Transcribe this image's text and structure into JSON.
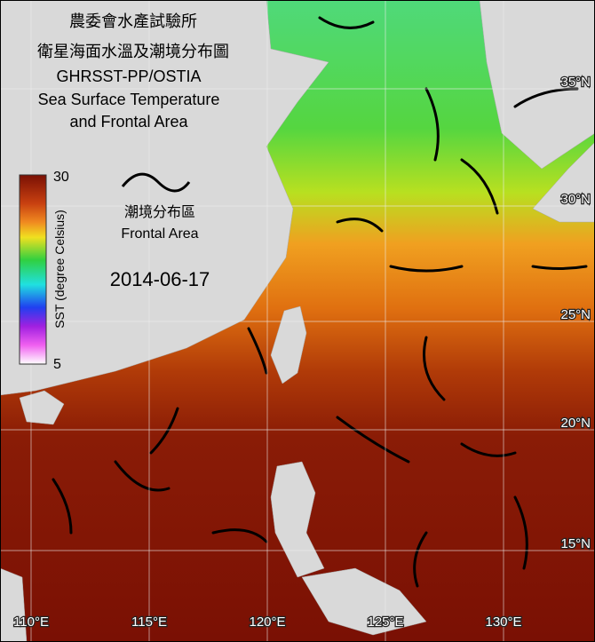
{
  "header": {
    "title_lines": [
      "農委會水產試驗所",
      "衛星海面水溫及潮境分布圖",
      "GHRSST-PP/OSTIA",
      "Sea Surface Temperature",
      "and Frontal Area"
    ]
  },
  "colorbar": {
    "max": 30,
    "min": 5,
    "label": "SST (degree Celsius)"
  },
  "frontal_legend": {
    "label_zh": "潮境分布區",
    "label_en": "Frontal Area"
  },
  "date": "2014-06-17",
  "grid": {
    "lat_labels": [
      "35°N",
      "30°N",
      "25°N",
      "20°N",
      "15°N"
    ],
    "lon_labels": [
      "110°E",
      "115°E",
      "120°E",
      "125°E",
      "130°E"
    ]
  }
}
